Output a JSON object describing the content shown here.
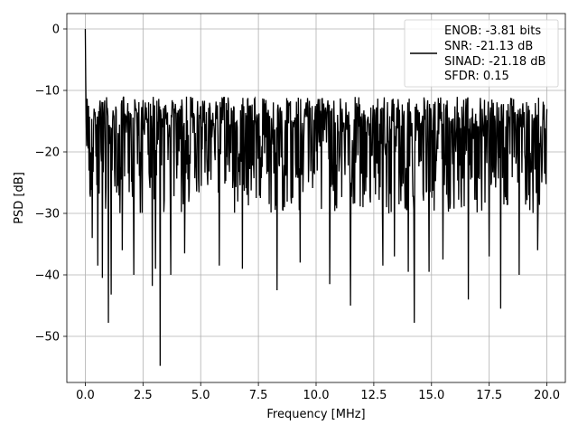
{
  "chart_data": {
    "type": "line",
    "xlabel": "Frequency [MHz]",
    "ylabel": "PSD [dB]",
    "xlim": [
      -0.8,
      20.8
    ],
    "ylim": [
      -57.5,
      2.5
    ],
    "x_ticks": [
      0.0,
      2.5,
      5.0,
      7.5,
      10.0,
      12.5,
      15.0,
      17.5,
      20.0
    ],
    "x_tick_labels": [
      "0.0",
      "2.5",
      "5.0",
      "7.5",
      "10.0",
      "12.5",
      "15.0",
      "17.5",
      "20.0"
    ],
    "y_ticks": [
      0,
      -10,
      -20,
      -30,
      -40,
      -50
    ],
    "y_tick_labels": [
      "0",
      "−10",
      "−20",
      "−30",
      "−40",
      "−50"
    ],
    "grid": true,
    "legend_position": "top-right",
    "legend_lines": [
      "ENOB: -3.81 bits",
      "SNR: -21.13 dB",
      "SINAD: -21.18 dB",
      "SFDR: 0.15"
    ],
    "series": [
      {
        "color": "#000000",
        "x_start": 0.0,
        "x_end": 20.0,
        "num_points": 1000,
        "upper_envelope_db": -10,
        "typical_floor_db": -30,
        "peak": {
          "x": 0.0,
          "y": 0.0
        },
        "deep_minima": [
          {
            "x": 0.3,
            "y": -34
          },
          {
            "x": 0.55,
            "y": -38.5
          },
          {
            "x": 0.75,
            "y": -40.5
          },
          {
            "x": 1.0,
            "y": -47.8
          },
          {
            "x": 1.12,
            "y": -43.2
          },
          {
            "x": 1.6,
            "y": -36
          },
          {
            "x": 2.1,
            "y": -40
          },
          {
            "x": 2.9,
            "y": -41.8
          },
          {
            "x": 3.05,
            "y": -39
          },
          {
            "x": 3.25,
            "y": -54.8
          },
          {
            "x": 3.7,
            "y": -40
          },
          {
            "x": 4.3,
            "y": -36.5
          },
          {
            "x": 5.8,
            "y": -38.5
          },
          {
            "x": 6.8,
            "y": -39
          },
          {
            "x": 8.3,
            "y": -42.5
          },
          {
            "x": 9.3,
            "y": -38
          },
          {
            "x": 10.6,
            "y": -41.5
          },
          {
            "x": 11.5,
            "y": -45
          },
          {
            "x": 12.9,
            "y": -38.5
          },
          {
            "x": 13.4,
            "y": -37
          },
          {
            "x": 14.0,
            "y": -39.5
          },
          {
            "x": 14.25,
            "y": -47.8
          },
          {
            "x": 14.9,
            "y": -39.5
          },
          {
            "x": 15.5,
            "y": -37.5
          },
          {
            "x": 16.6,
            "y": -44
          },
          {
            "x": 17.5,
            "y": -37
          },
          {
            "x": 18.0,
            "y": -45.5
          },
          {
            "x": 18.8,
            "y": -40
          },
          {
            "x": 19.6,
            "y": -36
          }
        ]
      }
    ]
  }
}
